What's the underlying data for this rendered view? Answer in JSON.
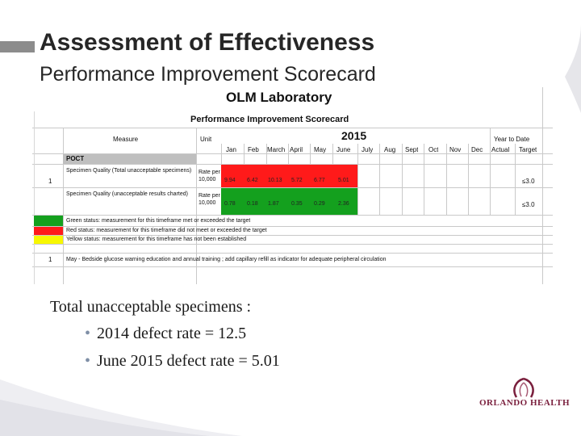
{
  "slide": {
    "title": "Assessment of Effectiveness",
    "subtitle": "Performance Improvement Scorecard"
  },
  "scorecard": {
    "lab_title": "OLM Laboratory",
    "scorecard_title": "Performance Improvement Scorecard",
    "header": {
      "measure": "Measure",
      "unit": "Unit",
      "year": "2015",
      "ytd": "Year to Date",
      "months": [
        "Jan",
        "Feb",
        "March",
        "April",
        "May",
        "June",
        "July",
        "Aug",
        "Sept",
        "Oct",
        "Nov",
        "Dec"
      ],
      "actual": "Actual",
      "target": "Target"
    },
    "section": "POCT",
    "rows": [
      {
        "num": "1",
        "measure": "Specimen Quality (Total unacceptable specimens)",
        "unit": "Rate per 10,000",
        "status_color": "#ff1a1a",
        "values": [
          "9.94",
          "6.42",
          "10.13",
          "5.72",
          "6.77",
          "5.01"
        ],
        "target": "≤3.0"
      },
      {
        "num": "",
        "measure": "Specimen Quality (unacceptable results charted)",
        "unit": "Rate per 10,000",
        "status_color": "#14a01e",
        "values": [
          "0.78",
          "0.18",
          "1.87",
          "0.35",
          "0.29",
          "2.36"
        ],
        "target": "≤3.0"
      }
    ],
    "legend": [
      {
        "color": "#14a01e",
        "text": "Green status: measurement for this timeframe met or exceeded the target"
      },
      {
        "color": "#ff1a1a",
        "text": "Red status: measurement for this timeframe did not meet or exceeded the target"
      },
      {
        "color": "#f7f700",
        "text": "Yellow status: measurement for this timeframe has not been established"
      }
    ],
    "footnote": {
      "num": "1",
      "text": "May - Bedside glucose warning education and annual training ; add capillary refill as indicator for adequate peripheral circulation"
    }
  },
  "summary": {
    "heading": "Total unacceptable specimens :",
    "items": [
      "2014 defect rate  = 12.5",
      "June 2015 defect rate  = 5.01"
    ]
  },
  "logo": {
    "text": "ORLANDO HEALTH",
    "accent_color": "#7a1f3d"
  }
}
